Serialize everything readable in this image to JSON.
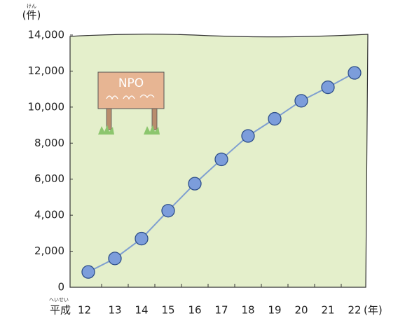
{
  "chart_data": {
    "type": "line",
    "y_unit": "(件)",
    "y_unit_ruby": "けん",
    "x_prefix": "平成",
    "x_prefix_ruby": "へいせい",
    "x_unit": "(年)",
    "sign_text": "NPO",
    "categories": [
      "12",
      "13",
      "14",
      "15",
      "16",
      "17",
      "18",
      "19",
      "20",
      "21",
      "22"
    ],
    "values": [
      850,
      1600,
      2700,
      4250,
      5750,
      7100,
      8400,
      9350,
      10350,
      11100,
      11900
    ],
    "color": "#7f9fd0",
    "marker_color": "#7c9ddb",
    "ylim": [
      0,
      14000
    ],
    "yticks": [
      0,
      {
        "value": 2000,
        "label": "2,000"
      },
      {
        "value": 4000,
        "label": "4,000"
      },
      {
        "value": 6000,
        "label": "6,000"
      },
      {
        "value": 8000,
        "label": "8,000"
      },
      {
        "value": 10000,
        "label": "10,000"
      },
      {
        "value": 12000,
        "label": "12,000"
      },
      {
        "value": 14000,
        "label": "14,000"
      }
    ]
  }
}
